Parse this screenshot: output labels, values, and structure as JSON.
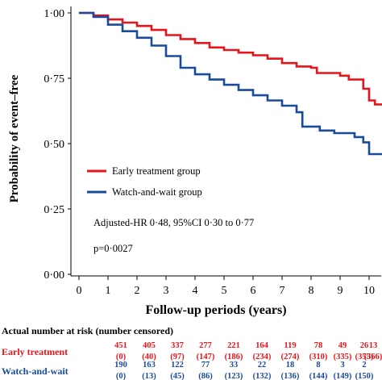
{
  "chart_data": {
    "type": "line",
    "xlabel": "Follow-up periods (years)",
    "ylabel": "Probability of event–free",
    "xlim": [
      -0.3,
      10.5
    ],
    "ylim": [
      0,
      1.0
    ],
    "xticks": [
      "0",
      "1",
      "2",
      "3",
      "4",
      "5",
      "6",
      "7",
      "8",
      "9",
      "10"
    ],
    "yticks": [
      "0·00",
      "0·25",
      "0·50",
      "0·75",
      "1·00"
    ],
    "grid": false,
    "legend_position": "middle-left",
    "series": [
      {
        "name": "Early treatment group",
        "color": "#e8141b",
        "step": true,
        "points": [
          [
            0,
            1.0
          ],
          [
            0.3,
            1.0
          ],
          [
            0.5,
            0.99
          ],
          [
            1.0,
            0.975
          ],
          [
            1.5,
            0.963
          ],
          [
            2.0,
            0.95
          ],
          [
            2.5,
            0.935
          ],
          [
            3.0,
            0.915
          ],
          [
            3.5,
            0.9
          ],
          [
            4.0,
            0.885
          ],
          [
            4.5,
            0.868
          ],
          [
            5.0,
            0.858
          ],
          [
            5.5,
            0.848
          ],
          [
            6.0,
            0.838
          ],
          [
            6.5,
            0.825
          ],
          [
            7.0,
            0.808
          ],
          [
            7.5,
            0.795
          ],
          [
            8.0,
            0.79
          ],
          [
            8.2,
            0.77
          ],
          [
            9.0,
            0.76
          ],
          [
            9.3,
            0.745
          ],
          [
            9.8,
            0.71
          ],
          [
            10.0,
            0.665
          ],
          [
            10.2,
            0.65
          ],
          [
            10.5,
            0.65
          ]
        ]
      },
      {
        "name": "Watch-and-wait group",
        "color": "#1a4a9a",
        "step": true,
        "points": [
          [
            0,
            1.0
          ],
          [
            0.2,
            1.0
          ],
          [
            0.5,
            0.985
          ],
          [
            1.0,
            0.955
          ],
          [
            1.5,
            0.93
          ],
          [
            2.0,
            0.905
          ],
          [
            2.5,
            0.875
          ],
          [
            3.0,
            0.835
          ],
          [
            3.5,
            0.79
          ],
          [
            4.0,
            0.765
          ],
          [
            4.5,
            0.745
          ],
          [
            5.0,
            0.725
          ],
          [
            5.5,
            0.705
          ],
          [
            6.0,
            0.685
          ],
          [
            6.5,
            0.665
          ],
          [
            7.0,
            0.645
          ],
          [
            7.5,
            0.62
          ],
          [
            7.7,
            0.565
          ],
          [
            8.3,
            0.55
          ],
          [
            8.8,
            0.54
          ],
          [
            9.5,
            0.525
          ],
          [
            9.8,
            0.505
          ],
          [
            10.0,
            0.46
          ],
          [
            10.5,
            0.46
          ]
        ]
      }
    ],
    "annotations": [
      "Adjusted-HR 0·48, 95%CI 0·30 to 0·77",
      "p=0·0027"
    ],
    "risk_table": {
      "title": "Actual number at risk (number censored)",
      "rows": [
        {
          "group": "Early treatment",
          "color": "#e8141b",
          "at_risk": [
            "451",
            "405",
            "337",
            "277",
            "221",
            "164",
            "119",
            "78",
            "49",
            "26",
            "13"
          ],
          "censored": [
            "(0)",
            "(40)",
            "(97)",
            "(147)",
            "(186)",
            "(234)",
            "(274)",
            "(310)",
            "(335)",
            "(355)",
            "(366)"
          ]
        },
        {
          "group": "Watch-and-wait",
          "color": "#1a4a9a",
          "at_risk": [
            "190",
            "163",
            "122",
            "77",
            "33",
            "22",
            "18",
            "8",
            "3",
            "2"
          ],
          "censored": [
            "(0)",
            "(13)",
            "(45)",
            "(86)",
            "(123)",
            "(132)",
            "(136)",
            "(144)",
            "(149)",
            "(150)"
          ]
        }
      ]
    }
  }
}
